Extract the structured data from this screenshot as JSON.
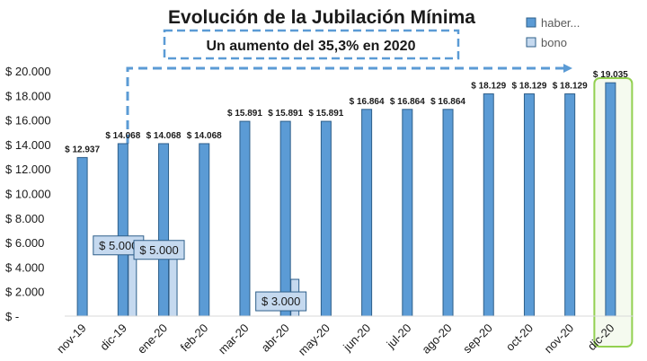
{
  "chart_data": {
    "type": "bar",
    "title": "Evolución de la Jubilación Mínima",
    "subtitle": "Un aumento del 35,3% en 2020",
    "categories": [
      "nov-19",
      "dic-19",
      "ene-20",
      "feb-20",
      "mar-20",
      "abr-20",
      "may-20",
      "jun-20",
      "jul-20",
      "ago-20",
      "sep-20",
      "oct-20",
      "nov-20",
      "dic-20"
    ],
    "series": [
      {
        "name": "haber...",
        "color": "#5b9bd5",
        "values": [
          12937,
          14068,
          14068,
          14068,
          15891,
          15891,
          15891,
          16864,
          16864,
          16864,
          18129,
          18129,
          18129,
          19035
        ],
        "labels": [
          "$ 12.937",
          "$ 14.068",
          "$ 14.068",
          "$ 14.068",
          "$ 15.891",
          "$ 15.891",
          "$ 15.891",
          "$ 16.864",
          "$ 16.864",
          "$ 16.864",
          "$ 18.129",
          "$ 18.129",
          "$ 18.129",
          "$ 19.035"
        ]
      },
      {
        "name": "bono",
        "color": "#c5d9ef",
        "values": [
          null,
          5000,
          5000,
          null,
          null,
          3000,
          null,
          null,
          null,
          null,
          null,
          null,
          null,
          null
        ],
        "labels": [
          null,
          "$ 5.000",
          "$ 5.000",
          null,
          null,
          "$ 3.000",
          null,
          null,
          null,
          null,
          null,
          null,
          null,
          null
        ]
      }
    ],
    "yticks": [
      "$ -",
      "$ 2.000",
      "$ 4.000",
      "$ 6.000",
      "$ 8.000",
      "$ 10.000",
      "$ 12.000",
      "$ 14.000",
      "$ 16.000",
      "$ 18.000",
      "$ 20.000"
    ],
    "ylim": [
      0,
      20000
    ],
    "grid": false,
    "legend_position": "top-right",
    "highlight_category": "dic-20",
    "highlight_color": "#92d050"
  }
}
